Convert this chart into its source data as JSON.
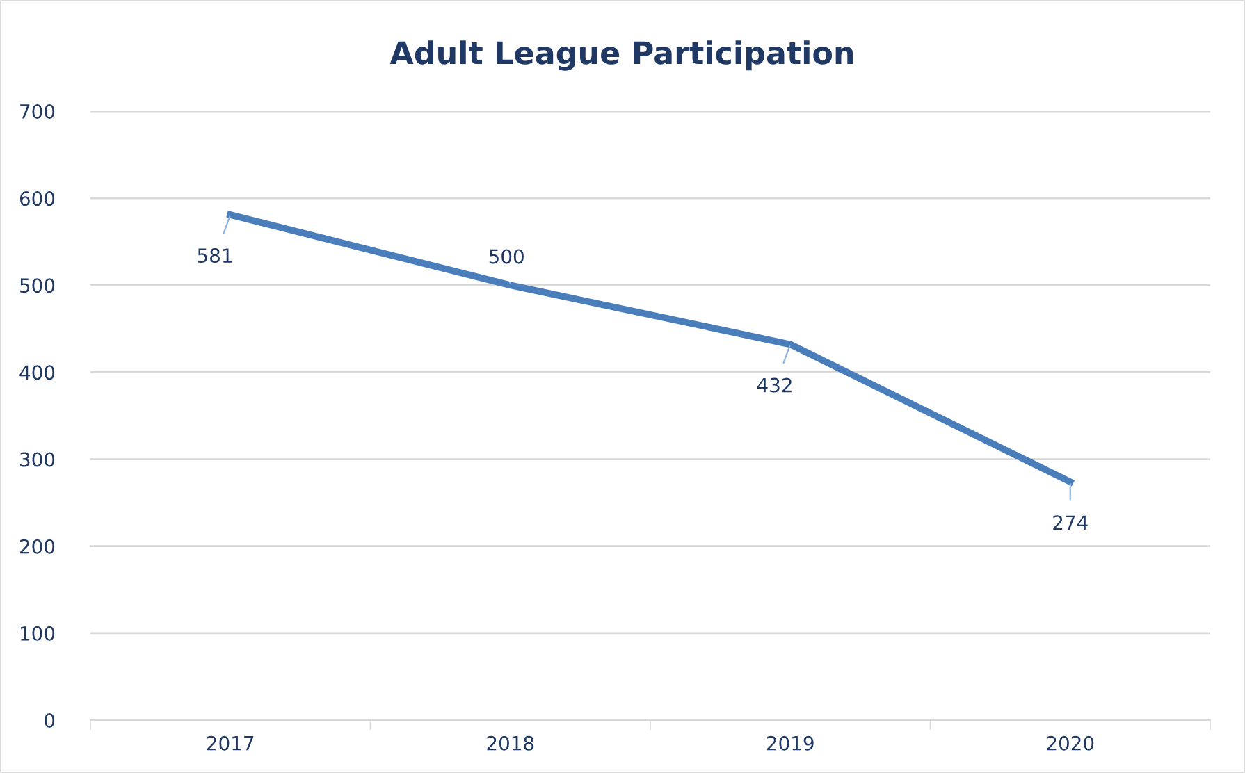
{
  "chart_data": {
    "type": "line",
    "title": "Adult League Participation",
    "categories": [
      "2017",
      "2018",
      "2019",
      "2020"
    ],
    "series": [
      {
        "color": "#4a7ebb",
        "values": [
          581,
          500,
          432,
          274
        ]
      }
    ],
    "ylim": [
      0,
      700
    ],
    "yticks": [
      0,
      100,
      200,
      300,
      400,
      500,
      600,
      700
    ],
    "grid": "y",
    "data_labels": true,
    "marker": "none",
    "line_style": "solid",
    "legend": false
  }
}
